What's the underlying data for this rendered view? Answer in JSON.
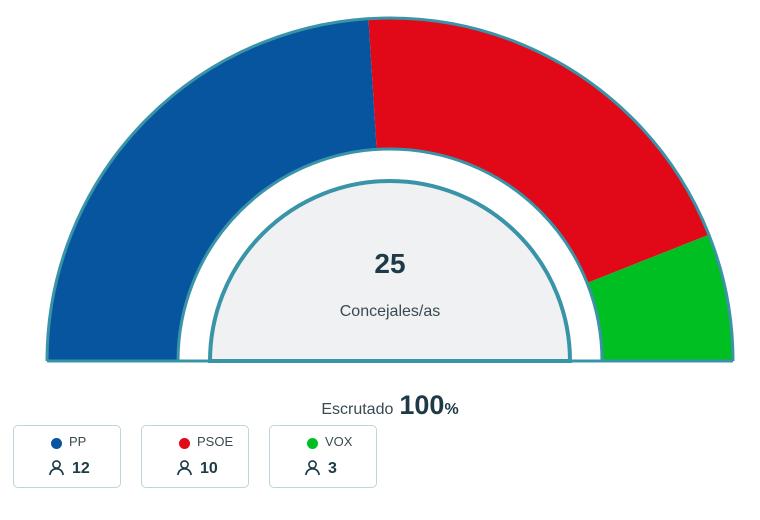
{
  "chart_data": {
    "type": "pie",
    "variant": "hemicycle",
    "total_seats": "25",
    "total_label": "Concejales/as",
    "scrutiny": {
      "label": "Escrutado",
      "value": "100",
      "unit": "%"
    },
    "series": [
      {
        "name": "PP",
        "seats": "12",
        "value": 12,
        "color": "#07559f"
      },
      {
        "name": "PSOE",
        "seats": "10",
        "value": 10,
        "color": "#e10918"
      },
      {
        "name": "VOX",
        "seats": "3",
        "value": 3,
        "color": "#00bf22"
      }
    ]
  },
  "colors": {
    "frame": "#3a94a8",
    "inner_fill": "#eff1f3",
    "text_dark": "#1d3a46"
  },
  "icons": {
    "seats": "person-icon"
  }
}
